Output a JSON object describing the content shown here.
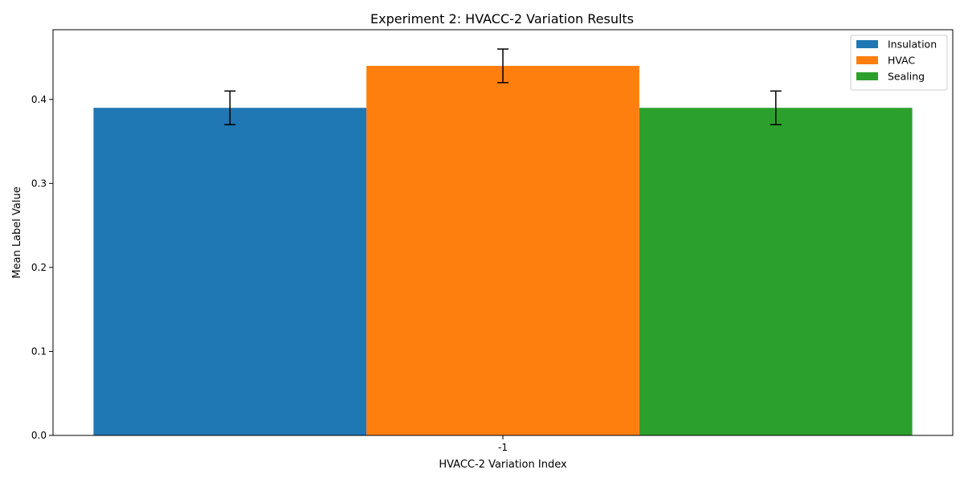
{
  "chart_data": {
    "type": "bar",
    "title": "Experiment 2: HVACC-2 Variation Results",
    "xlabel": "HVACC-2 Variation Index",
    "ylabel": "Mean Label Value",
    "categories": [
      "-1"
    ],
    "series": [
      {
        "name": "Insulation",
        "values": [
          0.39
        ],
        "errors": [
          0.02
        ],
        "color": "#1f77b4"
      },
      {
        "name": "HVAC",
        "values": [
          0.44
        ],
        "errors": [
          0.02
        ],
        "color": "#ff7f0e"
      },
      {
        "name": "Sealing",
        "values": [
          0.39
        ],
        "errors": [
          0.02
        ],
        "color": "#2ca02c"
      }
    ],
    "ylim": [
      0,
      0.483
    ],
    "yticks": [
      0.0,
      0.1,
      0.2,
      0.3,
      0.4
    ],
    "ytick_labels": [
      "0.0",
      "0.1",
      "0.2",
      "0.3",
      "0.4"
    ],
    "grid": false,
    "legend_position": "top-right"
  }
}
